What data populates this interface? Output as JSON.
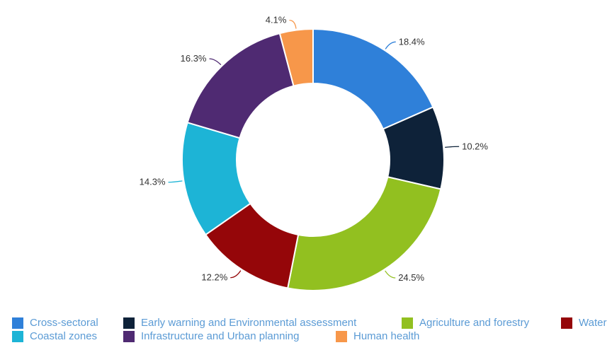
{
  "chart_data": {
    "type": "pie",
    "title": "",
    "donut": true,
    "legend_position": "bottom",
    "categories": [
      "Cross-sectoral",
      "Early warning and Environmental assessment",
      "Agriculture and forestry",
      "Water",
      "Coastal zones",
      "Infrastructure and Urban planning",
      "Human health"
    ],
    "values": [
      18.4,
      10.2,
      24.5,
      12.2,
      14.3,
      16.3,
      4.1
    ],
    "labels": [
      "18.4%",
      "10.2%",
      "24.5%",
      "12.2%",
      "14.3%",
      "16.3%",
      "4.1%"
    ],
    "colors": [
      "#2f80d9",
      "#0e2239",
      "#92c020",
      "#950609",
      "#1db4d6",
      "#4f2a72",
      "#f7974a"
    ]
  }
}
